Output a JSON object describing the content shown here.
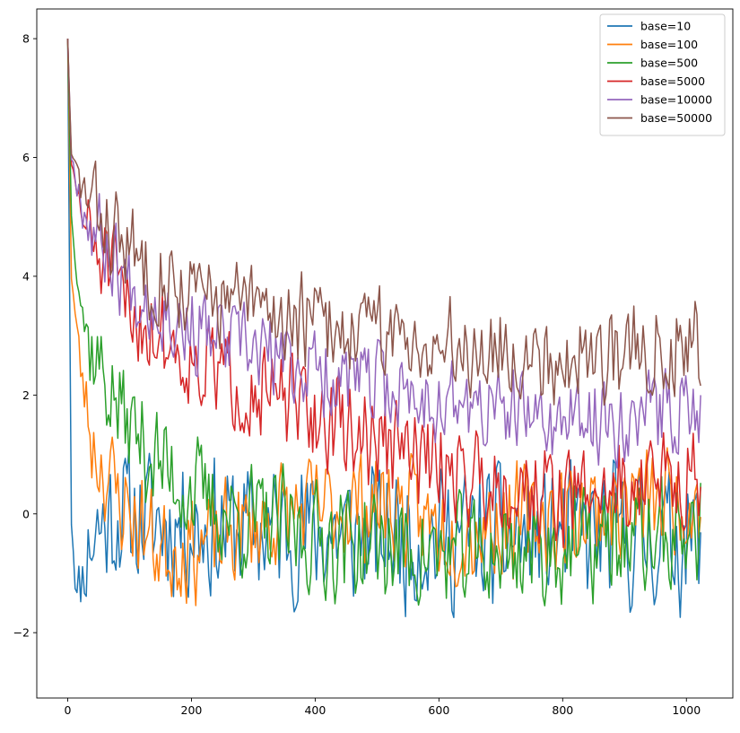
{
  "chart_data": {
    "type": "line",
    "title": "",
    "xlabel": "",
    "ylabel": "",
    "xlim": [
      -50,
      1075
    ],
    "ylim": [
      -3.1,
      8.5
    ],
    "xticks": [
      0,
      200,
      400,
      600,
      800,
      1000
    ],
    "xtick_labels": [
      "0",
      "200",
      "400",
      "600",
      "800",
      "1000"
    ],
    "yticks": [
      -2,
      0,
      2,
      4,
      6,
      8
    ],
    "ytick_labels": [
      "−2",
      "0",
      "2",
      "4",
      "6",
      "8"
    ],
    "grid": false,
    "legend_position": "top-right",
    "x_range": [
      0,
      1023
    ],
    "series": [
      {
        "name": "base=10",
        "color": "#1f77b4",
        "start": 8.0,
        "trend": [
          [
            0,
            8.0
          ],
          [
            6,
            -0.1
          ],
          [
            15,
            -1.4
          ],
          [
            40,
            -0.3
          ],
          [
            80,
            0.0
          ],
          [
            200,
            -0.2
          ],
          [
            400,
            -0.3
          ],
          [
            600,
            -0.4
          ],
          [
            800,
            -0.4
          ],
          [
            1023,
            -0.4
          ]
        ],
        "noise": 1.05,
        "seed": 11
      },
      {
        "name": "base=100",
        "color": "#ff7f0e",
        "start": 8.0,
        "trend": [
          [
            0,
            8.0
          ],
          [
            6,
            4.0
          ],
          [
            20,
            2.5
          ],
          [
            40,
            1.2
          ],
          [
            80,
            0.3
          ],
          [
            150,
            -0.6
          ],
          [
            230,
            -0.5
          ],
          [
            350,
            0.0
          ],
          [
            500,
            0.2
          ],
          [
            620,
            -0.3
          ],
          [
            800,
            0.0
          ],
          [
            1023,
            0.3
          ]
        ],
        "noise": 0.8,
        "seed": 23
      },
      {
        "name": "base=500",
        "color": "#2ca02c",
        "start": 8.0,
        "trend": [
          [
            0,
            8.0
          ],
          [
            6,
            5.0
          ],
          [
            30,
            3.0
          ],
          [
            80,
            1.8
          ],
          [
            150,
            0.8
          ],
          [
            250,
            0.0
          ],
          [
            400,
            -0.4
          ],
          [
            600,
            -0.7
          ],
          [
            800,
            -0.6
          ],
          [
            1023,
            -0.3
          ]
        ],
        "noise": 0.85,
        "seed": 37
      },
      {
        "name": "base=5000",
        "color": "#d62728",
        "start": 8.0,
        "trend": [
          [
            0,
            8.0
          ],
          [
            6,
            5.8
          ],
          [
            30,
            4.8
          ],
          [
            100,
            3.4
          ],
          [
            200,
            2.6
          ],
          [
            400,
            1.6
          ],
          [
            600,
            0.8
          ],
          [
            800,
            0.3
          ],
          [
            1023,
            0.7
          ]
        ],
        "noise": 0.75,
        "seed": 51
      },
      {
        "name": "base=10000",
        "color": "#9467bd",
        "start": 8.0,
        "trend": [
          [
            0,
            8.0
          ],
          [
            6,
            6.0
          ],
          [
            30,
            5.0
          ],
          [
            100,
            3.9
          ],
          [
            200,
            3.1
          ],
          [
            400,
            2.4
          ],
          [
            600,
            1.9
          ],
          [
            800,
            1.5
          ],
          [
            1023,
            1.8
          ]
        ],
        "noise": 0.65,
        "seed": 67
      },
      {
        "name": "base=50000",
        "color": "#8c564b",
        "start": 8.0,
        "trend": [
          [
            0,
            8.0
          ],
          [
            6,
            6.0
          ],
          [
            30,
            5.3
          ],
          [
            100,
            4.4
          ],
          [
            200,
            3.7
          ],
          [
            400,
            3.2
          ],
          [
            600,
            2.9
          ],
          [
            800,
            2.6
          ],
          [
            1023,
            2.9
          ]
        ],
        "noise": 0.7,
        "seed": 83
      }
    ]
  }
}
